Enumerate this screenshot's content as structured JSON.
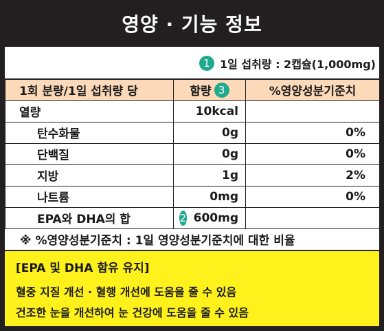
{
  "header": {
    "title": "영양  ·  기능 정보"
  },
  "serving": {
    "badge": "1",
    "text": "1일 섭취량 : 2캡슐(1,000mg)"
  },
  "table": {
    "headers": {
      "col1": "1회 분량/1일 섭취량 당",
      "col2": "함량",
      "col2_badge": "3",
      "col3": "%영양성분기준치"
    },
    "rows": [
      {
        "name": "열량",
        "amount": "10kcal",
        "dv": ""
      },
      {
        "name": "탄수화물",
        "amount": "0g",
        "dv": "0%"
      },
      {
        "name": "단백질",
        "amount": "0g",
        "dv": "0%"
      },
      {
        "name": "지방",
        "amount": "1g",
        "dv": "2%"
      },
      {
        "name": "나트륨",
        "amount": "0mg",
        "dv": "0%"
      },
      {
        "name": "EPA와 DHA의 합",
        "amount": "600mg",
        "dv": "",
        "badge": "2"
      }
    ]
  },
  "footnote": "※ %영양성분기준치 : 1일 영양성분기준치에 대한 비율",
  "function": {
    "title": "[EPA 및 DHA 함유 유지]",
    "lines": [
      "혈중 지질 개선 · 혈행 개선에 도움을 줄 수 있음",
      "건조한 눈을 개선하여 눈 건강에 도움을 줄 수 있음"
    ]
  },
  "colors": {
    "header_bg": "#231f20",
    "table_header_bg": "#fbd9b9",
    "badge": "#1fa98d",
    "function_bg": "#fff21c"
  }
}
